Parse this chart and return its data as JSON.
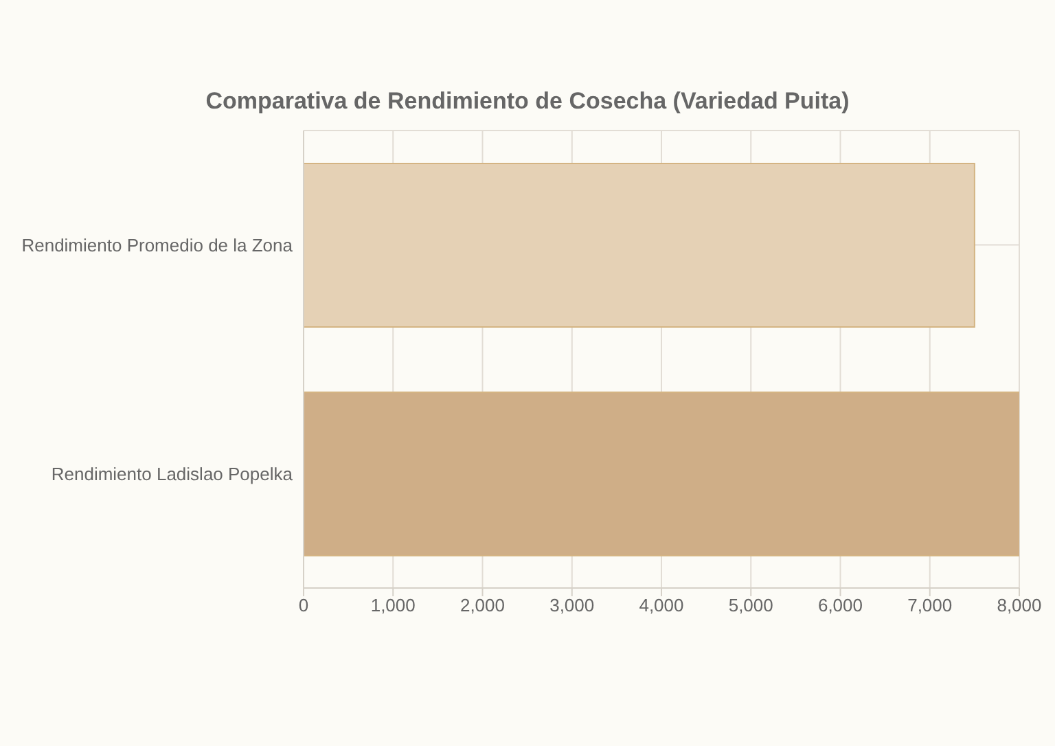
{
  "chart_data": {
    "type": "bar",
    "orientation": "horizontal",
    "title": "Comparativa de Rendimiento de Cosecha (Variedad Puita)",
    "categories": [
      "Rendimiento Promedio de la Zona",
      "Rendimiento Ladislao Popelka"
    ],
    "values": [
      7500,
      8000
    ],
    "colors": [
      "#e5d1b5",
      "#cfae87"
    ],
    "xlim": [
      0,
      8000
    ],
    "xticks": [
      {
        "value": 0,
        "label": "0"
      },
      {
        "value": 1000,
        "label": "1,000"
      },
      {
        "value": 2000,
        "label": "2,000"
      },
      {
        "value": 3000,
        "label": "3,000"
      },
      {
        "value": 4000,
        "label": "4,000"
      },
      {
        "value": 5000,
        "label": "5,000"
      },
      {
        "value": 6000,
        "label": "6,000"
      },
      {
        "value": 7000,
        "label": "7,000"
      },
      {
        "value": 8000,
        "label": "8,000"
      }
    ],
    "grid": true,
    "legend": false
  }
}
